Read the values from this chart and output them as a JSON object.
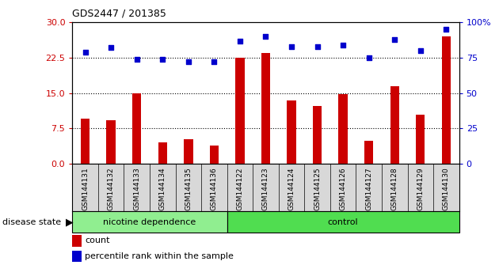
{
  "title": "GDS2447 / 201385",
  "samples": [
    "GSM144131",
    "GSM144132",
    "GSM144133",
    "GSM144134",
    "GSM144135",
    "GSM144136",
    "GSM144122",
    "GSM144123",
    "GSM144124",
    "GSM144125",
    "GSM144126",
    "GSM144127",
    "GSM144128",
    "GSM144129",
    "GSM144130"
  ],
  "counts": [
    9.5,
    9.2,
    15.0,
    4.5,
    5.2,
    3.8,
    22.5,
    23.5,
    13.5,
    12.2,
    14.8,
    4.8,
    16.5,
    10.5,
    27.0
  ],
  "percentiles": [
    79,
    82,
    74,
    74,
    72,
    72,
    87,
    90,
    83,
    83,
    84,
    75,
    88,
    80,
    95
  ],
  "bar_color": "#cc0000",
  "dot_color": "#0000cc",
  "yticks_left": [
    0,
    7.5,
    15,
    22.5,
    30
  ],
  "yticks_right": [
    0,
    25,
    50,
    75,
    100
  ],
  "ylim_left": [
    0,
    30
  ],
  "ylim_right": [
    0,
    100
  ],
  "hlines": [
    7.5,
    15,
    22.5
  ],
  "group1_label": "nicotine dependence",
  "group2_label": "control",
  "group1_count": 6,
  "group2_count": 9,
  "disease_label": "disease state",
  "legend_count_label": "count",
  "legend_pct_label": "percentile rank within the sample",
  "group1_color": "#90ee90",
  "group2_color": "#50dd50",
  "bar_width": 0.35
}
